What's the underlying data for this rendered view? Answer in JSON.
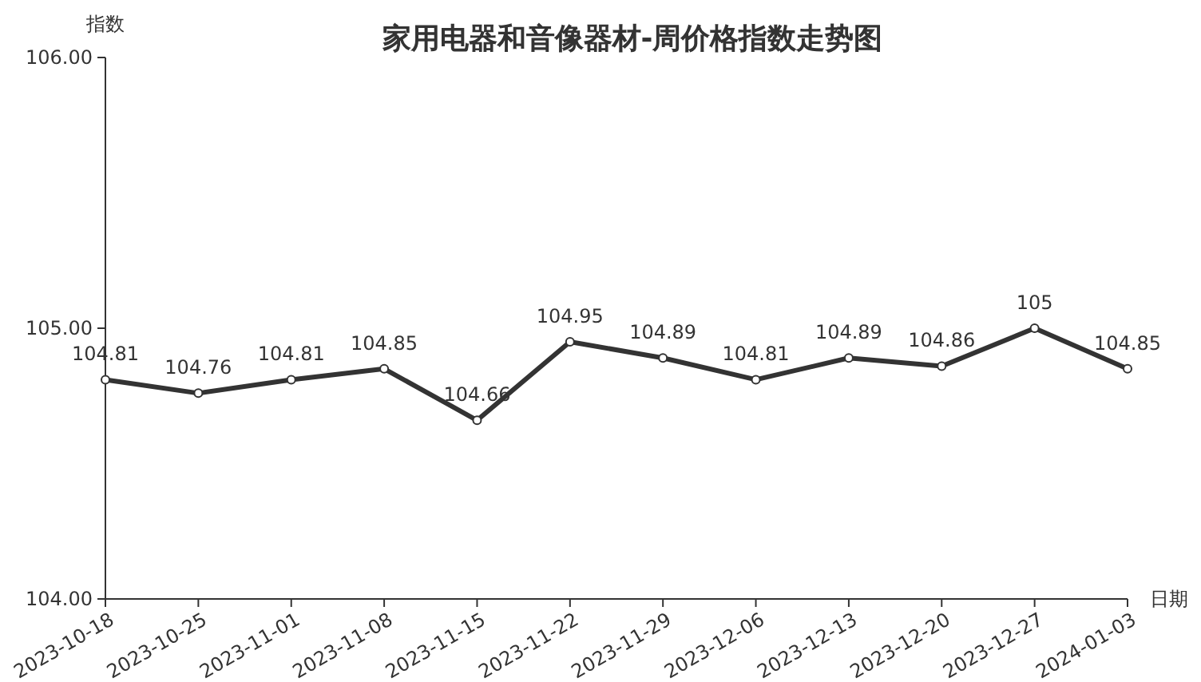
{
  "chart_data": {
    "type": "line",
    "title": "家用电器和音像器材-周价格指数走势图",
    "ylabel": "指数",
    "xlabel": "日期",
    "categories": [
      "2023-10-18",
      "2023-10-25",
      "2023-11-01",
      "2023-11-08",
      "2023-11-15",
      "2023-11-22",
      "2023-11-29",
      "2023-12-06",
      "2023-12-13",
      "2023-12-20",
      "2023-12-27",
      "2024-01-03"
    ],
    "series": [
      {
        "color": "#333333",
        "values": [
          104.81,
          104.76,
          104.81,
          104.85,
          104.66,
          104.95,
          104.89,
          104.81,
          104.89,
          104.86,
          105,
          104.85
        ]
      }
    ],
    "ylim": [
      104,
      106
    ],
    "yticks": [
      {
        "value": 104,
        "label": "104.00"
      },
      {
        "value": 105,
        "label": "105.00"
      },
      {
        "value": 106,
        "label": "106.00"
      }
    ],
    "marker": "circle",
    "line_style": "solid",
    "data_labels": true
  }
}
